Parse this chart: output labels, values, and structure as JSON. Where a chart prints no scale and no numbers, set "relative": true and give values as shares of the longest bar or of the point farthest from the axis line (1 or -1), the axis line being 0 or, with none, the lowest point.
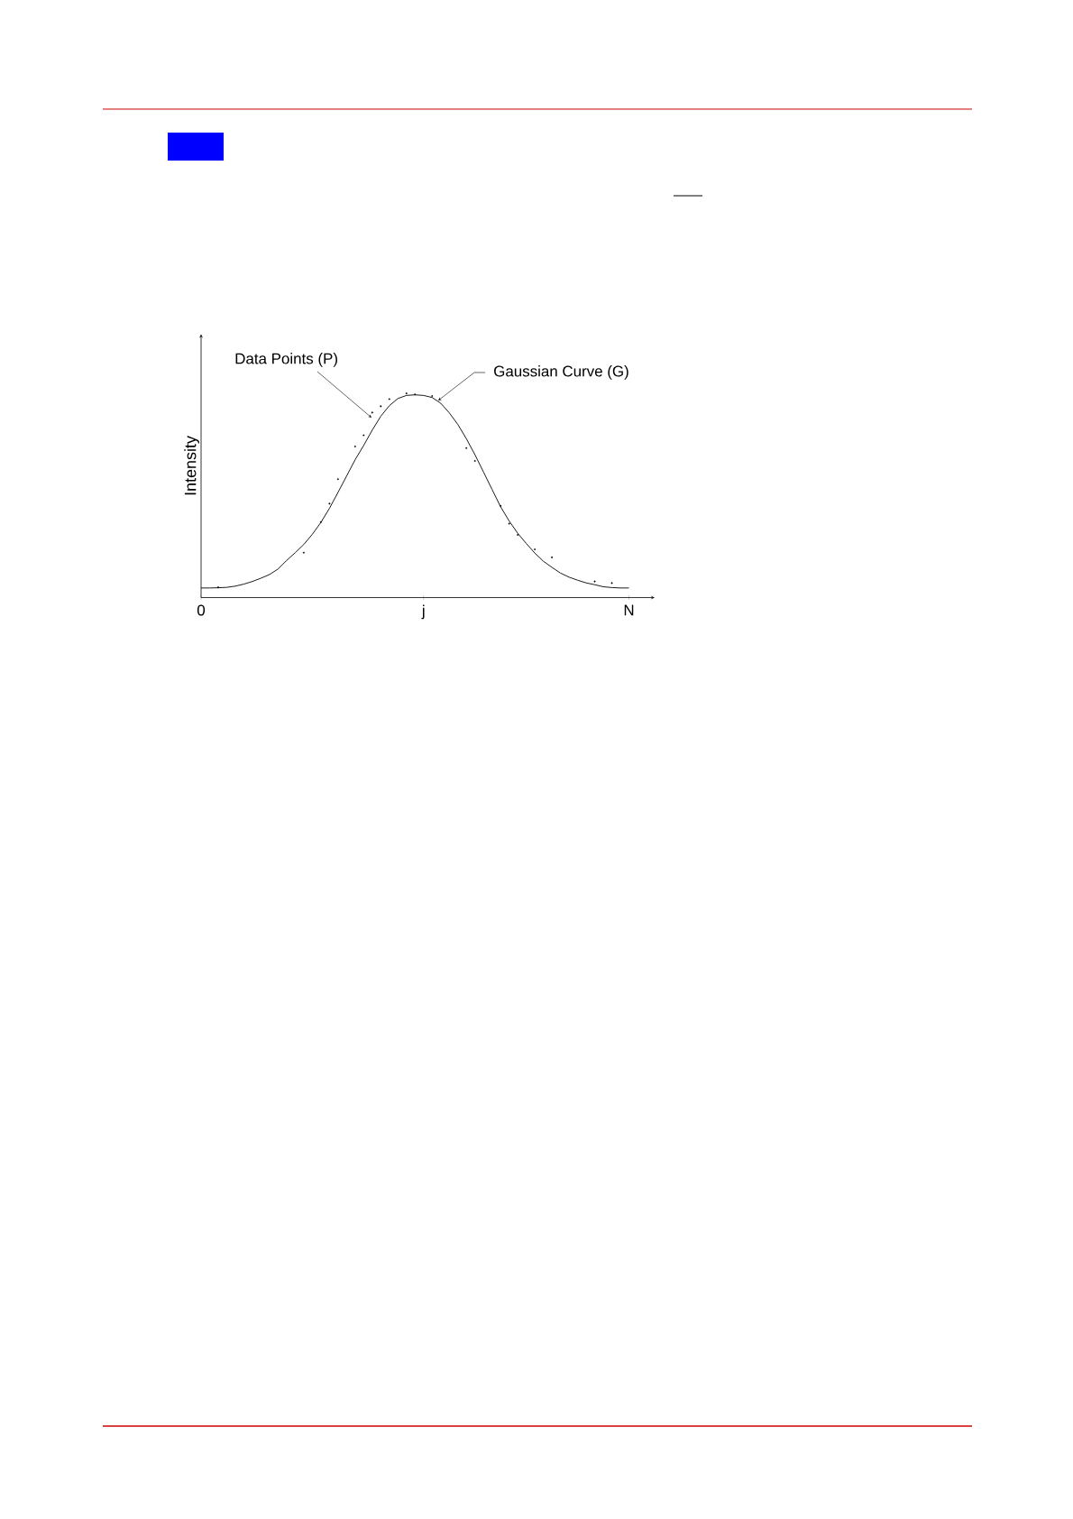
{
  "chart_data": {
    "type": "line",
    "relative": true,
    "ylabel": "Intensity",
    "categories": [
      "0",
      null,
      null,
      null,
      null,
      null,
      null,
      null,
      null,
      null,
      null,
      null,
      null,
      null,
      null,
      null,
      null,
      null,
      null,
      null,
      null,
      null,
      null,
      null,
      null,
      null,
      "j",
      null,
      null,
      null,
      null,
      null,
      null,
      null,
      null,
      null,
      null,
      null,
      null,
      null,
      null,
      null,
      null,
      null,
      null,
      null,
      null,
      null,
      null,
      null,
      "N"
    ],
    "series": [
      {
        "color": "#000000",
        "marker": "none",
        "values": [
          0.047,
          0.047,
          0.048,
          0.05,
          0.056,
          0.066,
          0.079,
          0.095,
          0.113,
          0.14,
          0.182,
          0.22,
          0.26,
          0.31,
          0.368,
          0.437,
          0.515,
          0.595,
          0.675,
          0.745,
          0.82,
          0.888,
          0.94,
          0.975,
          0.99,
          0.993,
          0.99,
          0.98,
          0.952,
          0.905,
          0.848,
          0.778,
          0.7,
          0.615,
          0.53,
          0.445,
          0.375,
          0.315,
          0.265,
          0.218,
          0.178,
          0.148,
          0.12,
          0.1,
          0.085,
          0.072,
          0.063,
          0.053,
          0.049,
          0.047,
          0.047
        ]
      },
      {
        "type": "scatter",
        "color": "#000000",
        "marker": "circle",
        "values": [
          null,
          null,
          0.05,
          null,
          null,
          null,
          null,
          null,
          null,
          null,
          null,
          null,
          0.22,
          null,
          0.37,
          0.46,
          0.58,
          null,
          0.74,
          0.795,
          0.906,
          0.937,
          0.972,
          null,
          1.0,
          0.995,
          null,
          0.987,
          null,
          null,
          null,
          0.732,
          0.669,
          null,
          null,
          0.449,
          0.362,
          0.307,
          null,
          0.236,
          null,
          0.197,
          null,
          null,
          null,
          null,
          0.079,
          null,
          0.071,
          null,
          null
        ]
      }
    ],
    "annotations": [
      "Data Points (P)",
      "Gaussian Curve (G)"
    ]
  }
}
